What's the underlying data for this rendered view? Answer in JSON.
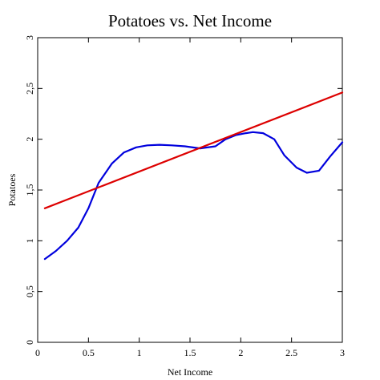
{
  "chart_data": {
    "type": "line",
    "title": "Potatoes vs. Net Income",
    "xlabel": "Net Income",
    "ylabel": "Potatoes",
    "xlim": [
      0,
      3
    ],
    "ylim": [
      0,
      3
    ],
    "xticks": [
      0,
      0.5,
      1,
      1.5,
      2,
      2.5,
      3
    ],
    "xtick_labels": [
      "0",
      "0.5",
      "1",
      "1.5",
      "2",
      "2.5",
      "3"
    ],
    "yticks": [
      0,
      0.5,
      1,
      1.5,
      2,
      2.5,
      3
    ],
    "ytick_labels": [
      "0",
      "0,5",
      "1",
      "1,5",
      "2",
      "2,5",
      "3"
    ],
    "grid": false,
    "series": [
      {
        "color": "#0000dd",
        "x": [
          0.07,
          0.18,
          0.29,
          0.4,
          0.5,
          0.6,
          0.73,
          0.85,
          0.97,
          1.08,
          1.2,
          1.32,
          1.45,
          1.6,
          1.75,
          1.85,
          1.95,
          2.05,
          2.12,
          2.22,
          2.33,
          2.43,
          2.55,
          2.65,
          2.77,
          2.88,
          3.0
        ],
        "y": [
          0.82,
          0.9,
          1.0,
          1.13,
          1.32,
          1.57,
          1.76,
          1.87,
          1.92,
          1.94,
          1.945,
          1.94,
          1.93,
          1.91,
          1.93,
          2.0,
          2.04,
          2.06,
          2.07,
          2.06,
          2.0,
          1.84,
          1.72,
          1.67,
          1.69,
          1.83,
          1.97
        ]
      },
      {
        "color": "#dd0000",
        "x": [
          0.07,
          3.0
        ],
        "y": [
          1.32,
          2.46
        ]
      }
    ]
  }
}
